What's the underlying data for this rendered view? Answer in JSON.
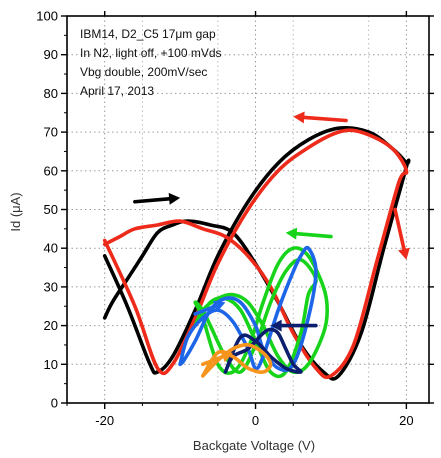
{
  "chart_data": {
    "type": "line",
    "xlabel": "Backgate Voltage (V)",
    "ylabel": "Id (μA)",
    "xlim": [
      -25,
      23
    ],
    "ylim": [
      0,
      100
    ],
    "x_ticks": [
      -20,
      0,
      20
    ],
    "x_tick_labels": [
      "-20",
      "0",
      "20"
    ],
    "y_ticks": [
      0,
      10,
      20,
      30,
      40,
      50,
      60,
      70,
      80,
      90,
      100
    ],
    "y_tick_labels": [
      "0",
      "10",
      "20",
      "30",
      "40",
      "50",
      "60",
      "70",
      "80",
      "90",
      "100"
    ],
    "grid": true,
    "annotations": [
      "IBM14, D2_C5 17μm gap",
      "In N2, light off, +100 mVds",
      "Vbg double, 200mV/sec",
      "April 17, 2013"
    ],
    "series": [
      {
        "color": "#000000",
        "x": [
          -20,
          -17,
          -14,
          -13,
          -11,
          -8,
          -5,
          -1,
          3,
          7,
          11,
          15,
          18,
          20,
          20,
          17,
          14,
          11,
          9,
          6,
          3,
          0,
          -3,
          -6,
          -9,
          -11,
          -13,
          -15,
          -17,
          -19,
          -20
        ],
        "y": [
          38,
          25,
          10,
          8,
          12,
          24,
          38,
          52,
          62,
          68,
          71,
          70,
          66,
          62,
          61,
          40,
          18,
          7,
          8,
          15,
          26,
          36,
          44,
          46,
          47,
          46,
          44,
          38,
          32,
          26,
          22
        ]
      },
      {
        "color": "#ee2a1a",
        "x": [
          -20,
          -16,
          -13,
          -11,
          -8,
          -5,
          -1,
          3,
          7,
          11,
          14,
          18,
          20,
          19,
          16,
          13,
          10,
          8,
          5,
          2,
          -1,
          -4,
          -7,
          -10,
          -13,
          -16,
          -18,
          -20
        ],
        "y": [
          42,
          25,
          9,
          10,
          22,
          36,
          50,
          60,
          66,
          70,
          70,
          66,
          60,
          57,
          36,
          15,
          7,
          9,
          18,
          30,
          38,
          43,
          45,
          47,
          46,
          45,
          43,
          41
        ]
      },
      {
        "color": "#17d41a",
        "x": [
          -8,
          -6,
          -4,
          -2,
          0,
          2,
          4,
          6,
          7,
          8,
          6,
          4,
          2,
          0,
          -2,
          -4,
          -6,
          -7,
          -8,
          -7,
          -5,
          -3,
          -1,
          1,
          3,
          5,
          7,
          9,
          9.5,
          9,
          7,
          5,
          3,
          1,
          -1,
          -3,
          -5,
          -7,
          -8
        ],
        "y": [
          20,
          26,
          27,
          24,
          16,
          8,
          8,
          18,
          28,
          32,
          37,
          34,
          26,
          15,
          8,
          12,
          20,
          24,
          26,
          22,
          10,
          8,
          14,
          26,
          36,
          40,
          38,
          30,
          24,
          18,
          10,
          8,
          12,
          20,
          26,
          28,
          27,
          24,
          20
        ]
      },
      {
        "color": "#1e66e8",
        "x": [
          -10,
          -9,
          -7,
          -5,
          -3,
          -1,
          0,
          1,
          3,
          5,
          6,
          7,
          8,
          7,
          5,
          3,
          1,
          0,
          -2,
          -4,
          -6,
          -8,
          -9.5,
          -10
        ],
        "y": [
          10,
          17,
          22,
          24,
          21,
          14,
          9,
          12,
          24,
          34,
          38,
          40,
          34,
          22,
          10,
          9,
          14,
          20,
          26,
          27,
          24,
          16,
          11,
          10
        ]
      },
      {
        "color": "#0c1f6e",
        "x": [
          -4,
          -3,
          -1,
          1,
          2,
          3,
          4,
          5,
          6,
          4,
          2,
          0,
          -2,
          -4
        ],
        "y": [
          8,
          12,
          14,
          18,
          19,
          18,
          14,
          10,
          8,
          9,
          12,
          16,
          17,
          8
        ]
      },
      {
        "color": "#f7941d",
        "x": [
          -7,
          -5,
          -3,
          -1,
          1,
          2,
          1,
          -1,
          -3,
          -5,
          -7
        ],
        "y": [
          7,
          11,
          14,
          15,
          13,
          10,
          8,
          9,
          12,
          13,
          7
        ]
      }
    ],
    "arrows": [
      {
        "color": "#000000",
        "from": [
          -16,
          52
        ],
        "to": [
          -10,
          53
        ]
      },
      {
        "color": "#ee2a1a",
        "from": [
          12,
          73
        ],
        "to": [
          5,
          74
        ]
      },
      {
        "color": "#ee2a1a",
        "from": [
          18.5,
          50
        ],
        "to": [
          20,
          37
        ]
      },
      {
        "color": "#17d41a",
        "from": [
          10,
          43
        ],
        "to": [
          4,
          44
        ]
      },
      {
        "color": "#1e66e8",
        "from": [
          -8,
          23
        ],
        "to": [
          -4,
          26
        ]
      },
      {
        "color": "#0c1f6e",
        "from": [
          8,
          20
        ],
        "to": [
          2,
          20
        ]
      },
      {
        "color": "#f7941d",
        "from": [
          -7,
          10
        ],
        "to": [
          -3,
          13
        ]
      }
    ]
  }
}
